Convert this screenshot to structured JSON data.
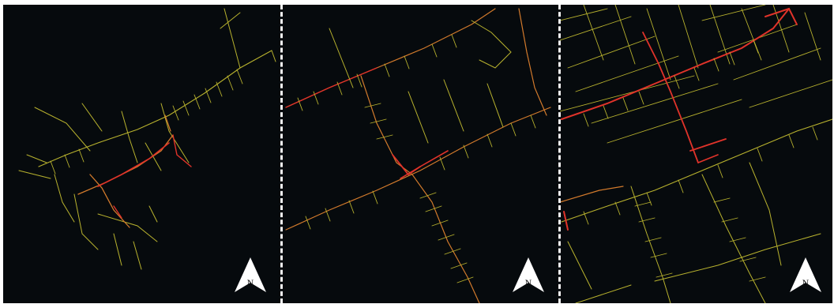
{
  "panels": [
    {
      "id": "a",
      "north_label": "N"
    },
    {
      "id": "b",
      "north_label": "N"
    },
    {
      "id": "c",
      "north_label": "N"
    }
  ],
  "colors": {
    "background": "#060a0d",
    "low_load": "#b8b22e",
    "mid_load": "#d27a2c",
    "high_load": "#e0332a",
    "divider": "#f2f2f2",
    "north_arrow": "#ffffff"
  },
  "icons": {
    "north_arrow": "north-arrow-icon"
  }
}
